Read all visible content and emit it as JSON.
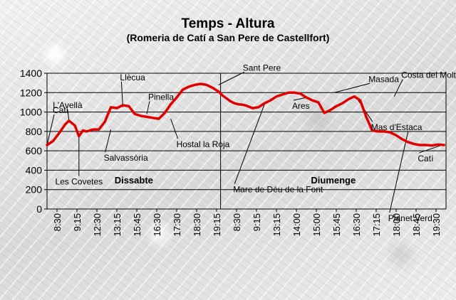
{
  "chart_data": {
    "type": "line",
    "title": "Temps - Altura",
    "subtitle": "(Romeria de Catí a San Pere de Castellfort)",
    "xlabel": "",
    "ylabel": "",
    "ylim": [
      0,
      1400
    ],
    "yticks": [
      0,
      200,
      400,
      600,
      800,
      1000,
      1200,
      1400
    ],
    "xticks": [
      "8:30",
      "9:15",
      "12:30",
      "13:15",
      "15:45",
      "16:30",
      "17:30",
      "18:30",
      "19:15",
      "8:30",
      "9:15",
      "13:15",
      "14:00",
      "15:00",
      "15:45",
      "16:30",
      "17:15",
      "18:00",
      "18:45",
      "19:30"
    ],
    "grid": "horizontal",
    "line_color": "#e00000",
    "days": [
      {
        "label": "Dissabte",
        "x_start": 0,
        "x_end": 8.7
      },
      {
        "label": "Diumenge",
        "x_start": 8.7,
        "x_end": 20
      }
    ],
    "series": [
      {
        "x": [
          0,
          0.3,
          0.6,
          0.9,
          1.1,
          1.4,
          1.6,
          1.8,
          2.0,
          2.3,
          2.6,
          2.9,
          3.2,
          3.5,
          3.8,
          4.1,
          4.4,
          4.7,
          5.0,
          5.3,
          5.6,
          5.9,
          6.2,
          6.5,
          6.8,
          7.1,
          7.4,
          7.7,
          8.0,
          8.3,
          8.6,
          8.8,
          9.0,
          9.2,
          9.4,
          9.6,
          9.8,
          10.0,
          10.3,
          10.6,
          10.9,
          11.2,
          11.5,
          11.8,
          12.1,
          12.4,
          12.7,
          13.0,
          13.3,
          13.6,
          13.9,
          14.2,
          14.5,
          14.8,
          15.1,
          15.4,
          15.7,
          16.0,
          16.3,
          16.6,
          16.9,
          17.2,
          17.5,
          17.8,
          18.1,
          18.4,
          18.7,
          19.0,
          19.3,
          19.6,
          19.9
        ],
        "values": [
          660,
          700,
          780,
          870,
          910,
          860,
          750,
          810,
          800,
          820,
          820,
          900,
          1050,
          1040,
          1070,
          1060,
          980,
          960,
          950,
          940,
          930,
          990,
          1080,
          1150,
          1230,
          1260,
          1280,
          1290,
          1280,
          1250,
          1210,
          1170,
          1140,
          1110,
          1090,
          1080,
          1075,
          1065,
          1040,
          1050,
          1090,
          1120,
          1160,
          1180,
          1200,
          1200,
          1190,
          1150,
          1120,
          1100,
          990,
          1020,
          1060,
          1090,
          1130,
          1160,
          1120,
          950,
          810,
          800,
          800,
          790,
          760,
          720,
          690,
          670,
          660,
          660,
          655,
          665,
          660
        ]
      }
    ],
    "annotations": [
      {
        "text": "Catí",
        "at_x": 0,
        "at_y": 660
      },
      {
        "text": "L'Avellà",
        "at_x": 1.1,
        "at_y": 910
      },
      {
        "text": "Les Covetes",
        "at_x": 1.6,
        "at_y": 750
      },
      {
        "text": "Salvassòria",
        "at_x": 3.2,
        "at_y": 820
      },
      {
        "text": "Llècua",
        "at_x": 3.8,
        "at_y": 1050
      },
      {
        "text": "Pinella",
        "at_x": 5.0,
        "at_y": 980
      },
      {
        "text": "Hostal la Roja",
        "at_x": 6.2,
        "at_y": 930
      },
      {
        "text": "Sant Pere",
        "at_x": 8.6,
        "at_y": 1280
      },
      {
        "text": "Mare de Déu de la Font",
        "at_x": 10.9,
        "at_y": 1080
      },
      {
        "text": "Ares",
        "at_x": 13.0,
        "at_y": 1150
      },
      {
        "text": "Masada",
        "at_x": 14.4,
        "at_y": 1200
      },
      {
        "text": "Mas d'Estaca",
        "at_x": 15.6,
        "at_y": 1120
      },
      {
        "text": "Costa del Moltó",
        "at_x": 17.4,
        "at_y": 1160
      },
      {
        "text": "Planet Verd",
        "at_x": 18.1,
        "at_y": 800
      },
      {
        "text": "Catí",
        "at_x": 19.8,
        "at_y": 660
      }
    ]
  }
}
